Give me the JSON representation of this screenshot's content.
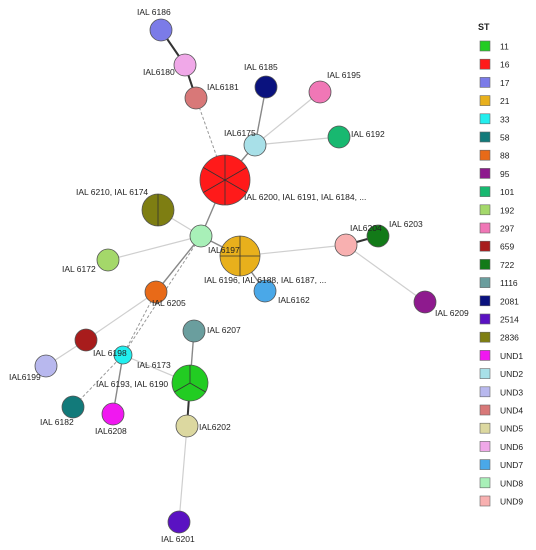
{
  "legend": {
    "title": "ST",
    "items": [
      {
        "label": "11",
        "color": "#22cc22"
      },
      {
        "label": "16",
        "color": "#ff1a1a"
      },
      {
        "label": "17",
        "color": "#7b7be8"
      },
      {
        "label": "21",
        "color": "#e8b01c"
      },
      {
        "label": "33",
        "color": "#22eeee"
      },
      {
        "label": "58",
        "color": "#127a7a"
      },
      {
        "label": "88",
        "color": "#e86a18"
      },
      {
        "label": "95",
        "color": "#8e1a8e"
      },
      {
        "label": "101",
        "color": "#18b870"
      },
      {
        "label": "192",
        "color": "#a4d86a"
      },
      {
        "label": "297",
        "color": "#f077b6"
      },
      {
        "label": "659",
        "color": "#a81c1c"
      },
      {
        "label": "722",
        "color": "#127a18"
      },
      {
        "label": "1116",
        "color": "#6a9e9e"
      },
      {
        "label": "2081",
        "color": "#0a127e"
      },
      {
        "label": "2514",
        "color": "#5a12c2"
      },
      {
        "label": "2836",
        "color": "#7e7e12"
      },
      {
        "label": "UND1",
        "color": "#f018f0"
      },
      {
        "label": "UND2",
        "color": "#a8e0e8"
      },
      {
        "label": "UND3",
        "color": "#b8b8ee"
      },
      {
        "label": "UND4",
        "color": "#d87878"
      },
      {
        "label": "UND5",
        "color": "#dcd8a0"
      },
      {
        "label": "UND6",
        "color": "#f0a8e8"
      },
      {
        "label": "UND7",
        "color": "#4aa8e8"
      },
      {
        "label": "UND8",
        "color": "#a8f0b8"
      },
      {
        "label": "UND9",
        "color": "#f8b0b0"
      }
    ]
  },
  "nodes": [
    {
      "id": "n6186",
      "label": "IAL 6186",
      "color": "#7b7be8",
      "sectors": 1
    },
    {
      "id": "n6180",
      "label": "IAL6180",
      "color": "#f0a8e8",
      "sectors": 1
    },
    {
      "id": "n6181",
      "label": "IAL6181",
      "color": "#d87878",
      "sectors": 1
    },
    {
      "id": "n6185",
      "label": "IAL 6185",
      "color": "#0a127e",
      "sectors": 1
    },
    {
      "id": "n6195",
      "label": "IAL 6195",
      "color": "#f077b6",
      "sectors": 1
    },
    {
      "id": "n6175",
      "label": "IAL6175",
      "color": "#a8e0e8",
      "sectors": 1
    },
    {
      "id": "n6192",
      "label": "IAL 6192",
      "color": "#18b870",
      "sectors": 1
    },
    {
      "id": "n16",
      "label": "IAL 6200, IAL 6191, IAL 6184, ...",
      "color": "#ff1a1a",
      "sectors": 6
    },
    {
      "id": "n2836",
      "label": "IAL 6210, IAL 6174",
      "color": "#7e7e12",
      "sectors": 2
    },
    {
      "id": "n6197",
      "label": "IAL6197",
      "color": "#a8f0b8",
      "sectors": 1
    },
    {
      "id": "n21",
      "label": "IAL 6196, IAL 6188, IAL 6187, ...",
      "color": "#e8b01c",
      "sectors": 4
    },
    {
      "id": "n6172",
      "label": "IAL 6172",
      "color": "#a4d86a",
      "sectors": 1
    },
    {
      "id": "n6162",
      "label": "IAL6162",
      "color": "#4aa8e8",
      "sectors": 1
    },
    {
      "id": "n6204",
      "label": "IAL6204",
      "color": "#f8b0b0",
      "sectors": 1
    },
    {
      "id": "n6203",
      "label": "IAL 6203",
      "color": "#127a18",
      "sectors": 1
    },
    {
      "id": "n6209",
      "label": "IAL 6209",
      "color": "#8e1a8e",
      "sectors": 1
    },
    {
      "id": "n6205",
      "label": "IAL 6205",
      "color": "#e86a18",
      "sectors": 1
    },
    {
      "id": "n6207",
      "label": "IAL 6207",
      "color": "#6a9e9e",
      "sectors": 1
    },
    {
      "id": "n6198",
      "label": "IAL 6198",
      "color": "#a81c1c",
      "sectors": 1
    },
    {
      "id": "n6199",
      "label": "IAL6199",
      "color": "#b8b8ee",
      "sectors": 1
    },
    {
      "id": "n6173",
      "label": "IAL 6173",
      "color": "#22eeee",
      "sectors": 1
    },
    {
      "id": "n11",
      "label": "IAL 6193, IAL 6190",
      "color": "#22cc22",
      "sectors": 3
    },
    {
      "id": "n6182",
      "label": "IAL 6182",
      "color": "#127a7a",
      "sectors": 1
    },
    {
      "id": "n6208",
      "label": "IAL6208",
      "color": "#f018f0",
      "sectors": 1
    },
    {
      "id": "n6202",
      "label": "IAL6202",
      "color": "#dcd8a0",
      "sectors": 1
    },
    {
      "id": "n6201",
      "label": "IAL 6201",
      "color": "#5a12c2",
      "sectors": 1
    }
  ],
  "edges": [
    {
      "from": "n6186",
      "to": "n6180",
      "style": "thick"
    },
    {
      "from": "n6180",
      "to": "n6181",
      "style": "thick"
    },
    {
      "from": "n6181",
      "to": "n16",
      "style": "dashed"
    },
    {
      "from": "n6185",
      "to": "n6175",
      "style": "medium"
    },
    {
      "from": "n6195",
      "to": "n6175",
      "style": "light"
    },
    {
      "from": "n6175",
      "to": "n16",
      "style": "medium"
    },
    {
      "from": "n6192",
      "to": "n6175",
      "style": "light"
    },
    {
      "from": "n16",
      "to": "n6197",
      "style": "medium"
    },
    {
      "from": "n2836",
      "to": "n6197",
      "style": "light"
    },
    {
      "from": "n6197",
      "to": "n21",
      "style": "medium"
    },
    {
      "from": "n6197",
      "to": "n6172",
      "style": "light"
    },
    {
      "from": "n6197",
      "to": "n6205",
      "style": "medium"
    },
    {
      "from": "n6197",
      "to": "n6173",
      "style": "dashed"
    },
    {
      "from": "n21",
      "to": "n6162",
      "style": "medium"
    },
    {
      "from": "n21",
      "to": "n6204",
      "style": "light"
    },
    {
      "from": "n6204",
      "to": "n6203",
      "style": "thick"
    },
    {
      "from": "n6204",
      "to": "n6209",
      "style": "light"
    },
    {
      "from": "n6205",
      "to": "n6198",
      "style": "light"
    },
    {
      "from": "n6205",
      "to": "n6173",
      "style": "dashed"
    },
    {
      "from": "n6198",
      "to": "n6199",
      "style": "light"
    },
    {
      "from": "n6173",
      "to": "n6182",
      "style": "dashed"
    },
    {
      "from": "n6173",
      "to": "n6208",
      "style": "medium"
    },
    {
      "from": "n6173",
      "to": "n11",
      "style": "light"
    },
    {
      "from": "n6207",
      "to": "n11",
      "style": "medium"
    },
    {
      "from": "n11",
      "to": "n6202",
      "style": "thick"
    },
    {
      "from": "n6202",
      "to": "n6201",
      "style": "light"
    }
  ]
}
